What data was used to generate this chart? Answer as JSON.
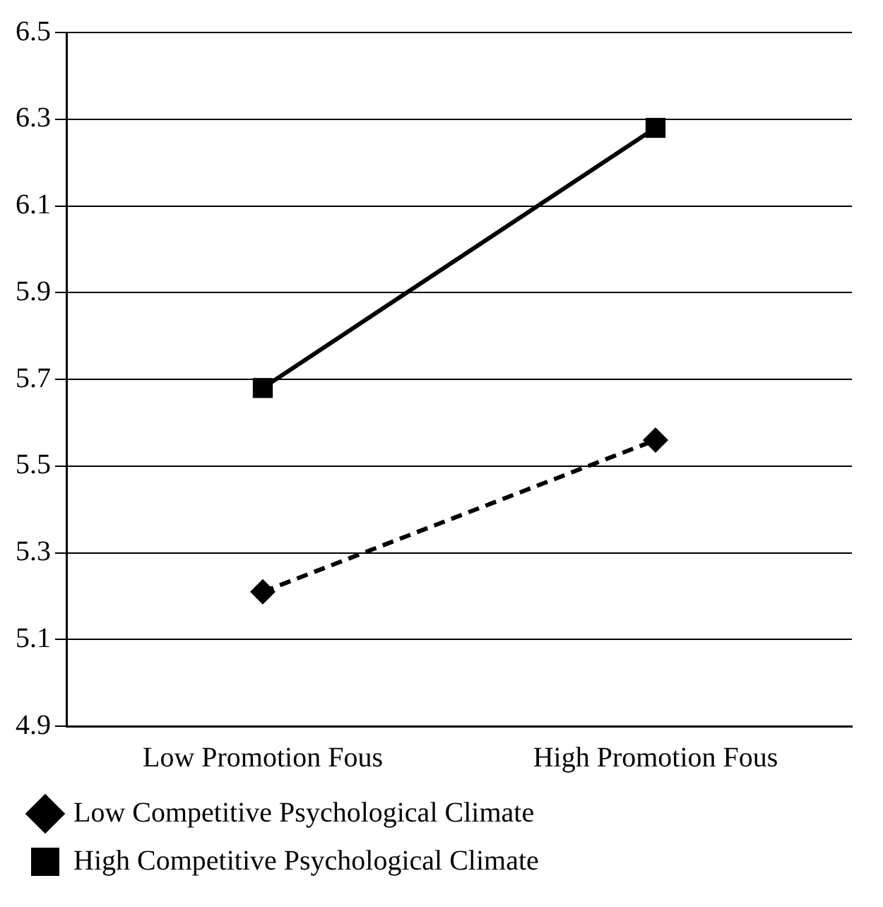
{
  "chart_data": {
    "type": "line",
    "categories": [
      "Low Promotion Fous",
      "High Promotion Fous"
    ],
    "series": [
      {
        "name": "Low Competitive Psychological Climate",
        "color": "#000000",
        "values": [
          5.21,
          5.56
        ],
        "marker": "diamond",
        "line_style": "dashed"
      },
      {
        "name": "High Competitive Psychological Climate",
        "color": "#000000",
        "values": [
          5.68,
          6.28
        ],
        "marker": "square",
        "line_style": "solid"
      }
    ],
    "ylim": [
      4.9,
      6.5
    ],
    "yticks": [
      4.9,
      5.1,
      5.3,
      5.5,
      5.7,
      5.9,
      6.1,
      6.3,
      6.5
    ],
    "grid": "y",
    "legend": "bottom"
  }
}
